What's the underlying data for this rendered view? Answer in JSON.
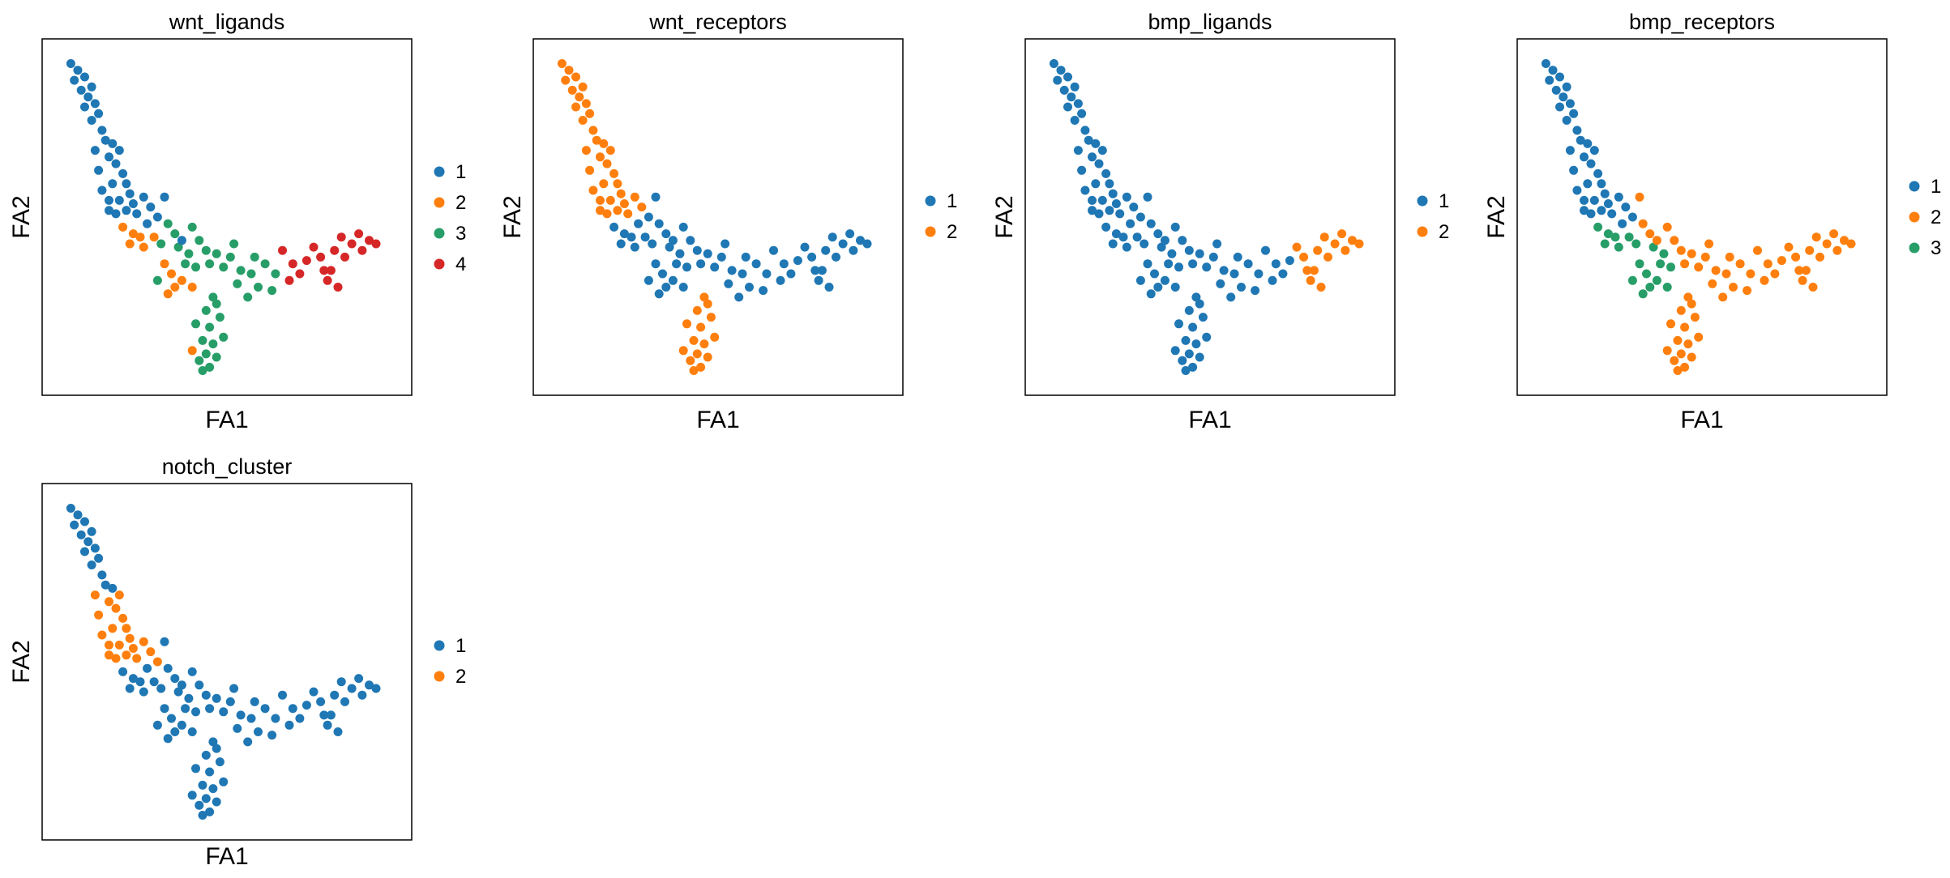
{
  "chart_data": [
    {
      "type": "scatter",
      "title": "wnt_ligands",
      "xlabel": "FA1",
      "ylabel": "FA2",
      "legend": [
        "1",
        "2",
        "3",
        "4"
      ],
      "legend_placement": "right",
      "grid": false,
      "ticks": false
    },
    {
      "type": "scatter",
      "title": "wnt_receptors",
      "xlabel": "FA1",
      "ylabel": "FA2",
      "legend": [
        "1",
        "2"
      ],
      "legend_placement": "right",
      "grid": false,
      "ticks": false
    },
    {
      "type": "scatter",
      "title": "bmp_ligands",
      "xlabel": "FA1",
      "ylabel": "FA2",
      "legend": [
        "1",
        "2"
      ],
      "legend_placement": "right",
      "grid": false,
      "ticks": false
    },
    {
      "type": "scatter",
      "title": "bmp_receptors",
      "xlabel": "FA1",
      "ylabel": "FA2",
      "legend": [
        "1",
        "2",
        "3"
      ],
      "legend_placement": "right",
      "grid": false,
      "ticks": false
    },
    {
      "type": "scatter",
      "title": "notch_cluster",
      "xlabel": "FA1",
      "ylabel": "FA2",
      "legend": [
        "1",
        "2"
      ],
      "legend_placement": "right",
      "grid": false,
      "ticks": false
    }
  ],
  "colors": {
    "1": "#1f77b4",
    "2": "#ff7f0e",
    "3": "#279e68",
    "4": "#d62728"
  },
  "points": [
    [
      0.05,
      0.96
    ],
    [
      0.07,
      0.94
    ],
    [
      0.06,
      0.91
    ],
    [
      0.09,
      0.92
    ],
    [
      0.08,
      0.88
    ],
    [
      0.11,
      0.89
    ],
    [
      0.1,
      0.86
    ],
    [
      0.12,
      0.84
    ],
    [
      0.09,
      0.83
    ],
    [
      0.13,
      0.81
    ],
    [
      0.11,
      0.79
    ],
    [
      0.14,
      0.76
    ],
    [
      0.15,
      0.73
    ],
    [
      0.12,
      0.7
    ],
    [
      0.17,
      0.72
    ],
    [
      0.16,
      0.68
    ],
    [
      0.19,
      0.7
    ],
    [
      0.18,
      0.66
    ],
    [
      0.2,
      0.63
    ],
    [
      0.17,
      0.6
    ],
    [
      0.21,
      0.6
    ],
    [
      0.14,
      0.58
    ],
    [
      0.22,
      0.57
    ],
    [
      0.16,
      0.55
    ],
    [
      0.19,
      0.55
    ],
    [
      0.23,
      0.54
    ],
    [
      0.21,
      0.52
    ],
    [
      0.24,
      0.51
    ],
    [
      0.18,
      0.51
    ],
    [
      0.26,
      0.56
    ],
    [
      0.28,
      0.53
    ],
    [
      0.3,
      0.5
    ],
    [
      0.27,
      0.48
    ],
    [
      0.32,
      0.56
    ],
    [
      0.2,
      0.47
    ],
    [
      0.23,
      0.45
    ],
    [
      0.25,
      0.44
    ],
    [
      0.29,
      0.44
    ],
    [
      0.22,
      0.42
    ],
    [
      0.26,
      0.41
    ],
    [
      0.33,
      0.48
    ],
    [
      0.31,
      0.42
    ],
    [
      0.35,
      0.45
    ],
    [
      0.36,
      0.41
    ],
    [
      0.4,
      0.47
    ],
    [
      0.42,
      0.43
    ],
    [
      0.39,
      0.39
    ],
    [
      0.44,
      0.4
    ],
    [
      0.38,
      0.36
    ],
    [
      0.41,
      0.35
    ],
    [
      0.45,
      0.36
    ],
    [
      0.47,
      0.39
    ],
    [
      0.49,
      0.35
    ],
    [
      0.51,
      0.38
    ],
    [
      0.54,
      0.34
    ],
    [
      0.53,
      0.3
    ],
    [
      0.57,
      0.33
    ],
    [
      0.59,
      0.29
    ],
    [
      0.56,
      0.26
    ],
    [
      0.61,
      0.36
    ],
    [
      0.66,
      0.4
    ],
    [
      0.69,
      0.36
    ],
    [
      0.68,
      0.31
    ],
    [
      0.71,
      0.33
    ],
    [
      0.73,
      0.37
    ],
    [
      0.75,
      0.41
    ],
    [
      0.77,
      0.38
    ],
    [
      0.78,
      0.34
    ],
    [
      0.81,
      0.4
    ],
    [
      0.83,
      0.44
    ],
    [
      0.84,
      0.38
    ],
    [
      0.86,
      0.42
    ],
    [
      0.88,
      0.45
    ],
    [
      0.89,
      0.4
    ],
    [
      0.91,
      0.43
    ],
    [
      0.93,
      0.42
    ],
    [
      0.8,
      0.34
    ],
    [
      0.82,
      0.29
    ],
    [
      0.79,
      0.31
    ],
    [
      0.47,
      0.24
    ],
    [
      0.44,
      0.22
    ],
    [
      0.48,
      0.2
    ],
    [
      0.45,
      0.17
    ],
    [
      0.43,
      0.13
    ],
    [
      0.46,
      0.12
    ],
    [
      0.44,
      0.09
    ],
    [
      0.47,
      0.08
    ],
    [
      0.42,
      0.07
    ],
    [
      0.45,
      0.05
    ],
    [
      0.43,
      0.04
    ],
    [
      0.46,
      0.26
    ],
    [
      0.41,
      0.18
    ],
    [
      0.49,
      0.14
    ],
    [
      0.4,
      0.1
    ],
    [
      0.35,
      0.29
    ],
    [
      0.33,
      0.27
    ],
    [
      0.34,
      0.33
    ],
    [
      0.32,
      0.36
    ],
    [
      0.37,
      0.31
    ],
    [
      0.4,
      0.29
    ],
    [
      0.3,
      0.31
    ],
    [
      0.63,
      0.28
    ],
    [
      0.58,
      0.38
    ],
    [
      0.52,
      0.42
    ],
    [
      0.64,
      0.33
    ],
    [
      0.37,
      0.43
    ],
    [
      0.16,
      0.52
    ],
    [
      0.13,
      0.64
    ]
  ],
  "clusters": {
    "wnt_ligands": [
      1,
      1,
      1,
      1,
      1,
      1,
      1,
      1,
      1,
      1,
      1,
      1,
      1,
      1,
      1,
      1,
      1,
      1,
      1,
      1,
      1,
      1,
      1,
      1,
      1,
      1,
      1,
      1,
      1,
      1,
      1,
      1,
      1,
      1,
      2,
      2,
      2,
      2,
      2,
      2,
      3,
      3,
      3,
      3,
      3,
      3,
      3,
      3,
      3,
      3,
      3,
      3,
      3,
      3,
      3,
      3,
      3,
      3,
      3,
      3,
      4,
      4,
      4,
      4,
      4,
      4,
      4,
      4,
      4,
      4,
      4,
      4,
      4,
      4,
      4,
      4,
      4,
      4,
      4,
      3,
      3,
      3,
      3,
      3,
      3,
      3,
      3,
      3,
      3,
      3,
      3,
      3,
      3,
      2,
      2,
      2,
      2,
      2,
      2,
      2,
      3,
      3,
      3,
      3,
      3,
      1,
      1
    ],
    "wnt_receptors": [
      2,
      2,
      2,
      2,
      2,
      2,
      2,
      2,
      2,
      2,
      2,
      2,
      2,
      2,
      2,
      2,
      2,
      2,
      2,
      2,
      2,
      2,
      2,
      2,
      2,
      2,
      2,
      2,
      2,
      2,
      2,
      1,
      1,
      1,
      1,
      1,
      1,
      1,
      1,
      1,
      1,
      1,
      1,
      1,
      1,
      1,
      1,
      1,
      1,
      1,
      1,
      1,
      1,
      1,
      1,
      1,
      1,
      1,
      1,
      1,
      1,
      1,
      1,
      1,
      1,
      1,
      1,
      1,
      1,
      1,
      1,
      1,
      1,
      1,
      1,
      1,
      1,
      1,
      1,
      2,
      2,
      2,
      2,
      2,
      2,
      2,
      2,
      2,
      2,
      2,
      2,
      2,
      2,
      2,
      1,
      1,
      1,
      1,
      1,
      1,
      1,
      1,
      1,
      1,
      1,
      1,
      2,
      2
    ],
    "bmp_ligands": [
      1,
      1,
      1,
      1,
      1,
      1,
      1,
      1,
      1,
      1,
      1,
      1,
      1,
      1,
      1,
      1,
      1,
      1,
      1,
      1,
      1,
      1,
      1,
      1,
      1,
      1,
      1,
      1,
      1,
      1,
      1,
      1,
      1,
      1,
      1,
      1,
      1,
      1,
      1,
      1,
      1,
      1,
      1,
      1,
      1,
      1,
      1,
      1,
      1,
      1,
      1,
      1,
      1,
      1,
      1,
      1,
      1,
      1,
      1,
      1,
      1,
      1,
      1,
      1,
      1,
      2,
      2,
      2,
      2,
      2,
      2,
      2,
      2,
      2,
      2,
      2,
      2,
      2,
      2,
      1,
      1,
      1,
      1,
      1,
      1,
      1,
      1,
      1,
      1,
      1,
      1,
      1,
      1,
      1,
      1,
      1,
      1,
      1,
      1,
      1,
      1,
      1,
      1,
      1,
      1,
      1,
      1,
      1
    ],
    "bmp_receptors": [
      1,
      1,
      1,
      1,
      1,
      1,
      1,
      1,
      1,
      1,
      1,
      1,
      1,
      1,
      1,
      1,
      1,
      1,
      1,
      1,
      1,
      1,
      1,
      1,
      1,
      1,
      1,
      1,
      1,
      1,
      1,
      1,
      1,
      2,
      3,
      3,
      3,
      3,
      3,
      3,
      2,
      3,
      2,
      3,
      2,
      2,
      3,
      2,
      3,
      3,
      2,
      2,
      2,
      2,
      2,
      2,
      2,
      2,
      2,
      2,
      2,
      2,
      2,
      2,
      2,
      2,
      2,
      2,
      2,
      2,
      2,
      2,
      2,
      2,
      2,
      2,
      2,
      2,
      2,
      2,
      2,
      2,
      2,
      2,
      2,
      2,
      2,
      2,
      2,
      2,
      2,
      2,
      2,
      2,
      3,
      3,
      3,
      3,
      3,
      3,
      3,
      2,
      2,
      2,
      2,
      2,
      1,
      1
    ],
    "notch_cluster": [
      1,
      1,
      1,
      1,
      1,
      1,
      1,
      1,
      1,
      1,
      1,
      1,
      1,
      2,
      1,
      2,
      2,
      2,
      2,
      2,
      2,
      2,
      2,
      2,
      2,
      2,
      2,
      2,
      2,
      2,
      2,
      2,
      1,
      1,
      1,
      1,
      1,
      1,
      1,
      1,
      1,
      1,
      1,
      1,
      1,
      1,
      1,
      1,
      1,
      1,
      1,
      1,
      1,
      1,
      1,
      1,
      1,
      1,
      1,
      1,
      1,
      1,
      1,
      1,
      1,
      1,
      1,
      1,
      1,
      1,
      1,
      1,
      1,
      1,
      1,
      1,
      1,
      1,
      1,
      1,
      1,
      1,
      1,
      1,
      1,
      1,
      1,
      1,
      1,
      1,
      1,
      1,
      1,
      1,
      1,
      1,
      1,
      1,
      1,
      1,
      1,
      1,
      1,
      1,
      1,
      1,
      2,
      2
    ]
  }
}
